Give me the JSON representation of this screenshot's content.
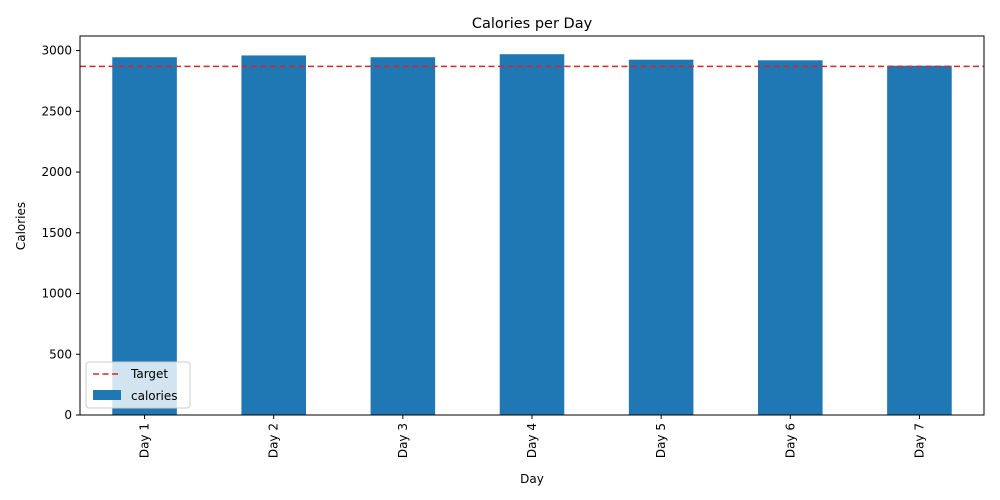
{
  "chart_data": {
    "type": "bar",
    "title": "Calories per Day",
    "xlabel": "Day",
    "ylabel": "Calories",
    "categories": [
      "Day 1",
      "Day 2",
      "Day 3",
      "Day 4",
      "Day 5",
      "Day 6",
      "Day 7"
    ],
    "series": [
      {
        "name": "calories",
        "values": [
          2945,
          2960,
          2945,
          2970,
          2925,
          2920,
          2875
        ],
        "color": "#1f77b4"
      }
    ],
    "target": {
      "name": "Target",
      "value": 2870,
      "color": "#d62728",
      "style": "dashed"
    },
    "ylim": [
      0,
      3120
    ],
    "yticks": [
      0,
      500,
      1000,
      1500,
      2000,
      2500,
      3000
    ],
    "legend_position": "lower-left",
    "grid": false
  }
}
